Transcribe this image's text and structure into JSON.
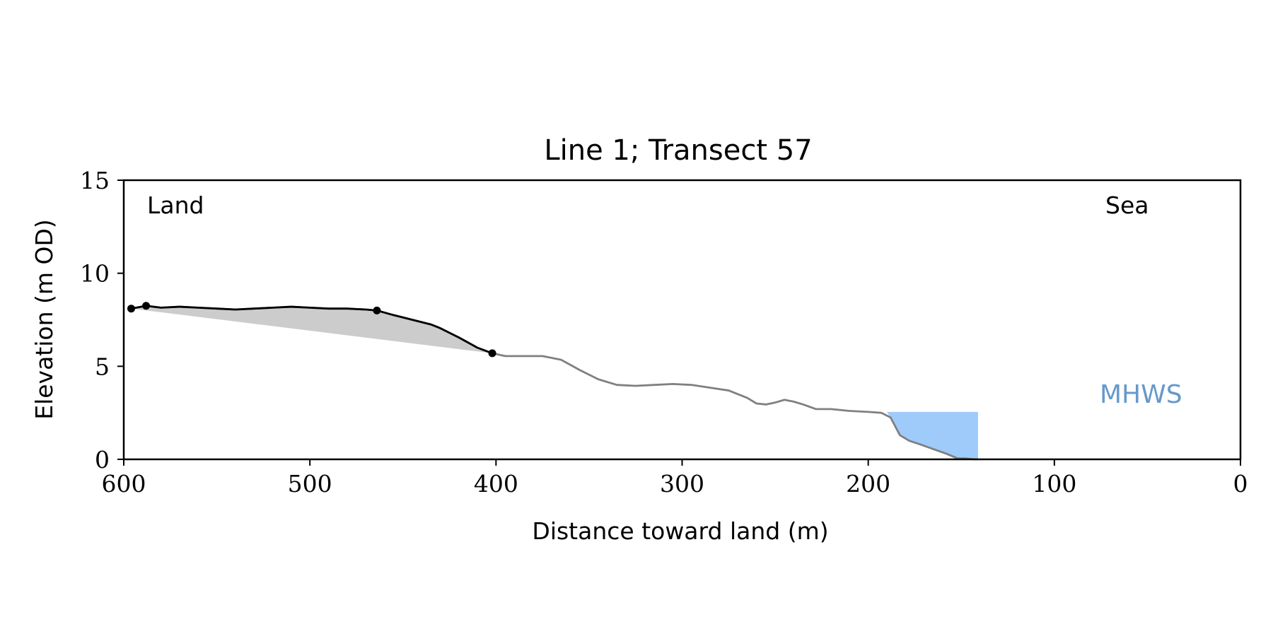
{
  "chart_data": {
    "type": "line",
    "title": "Line 1; Transect 57",
    "xlabel": "Distance toward land (m)",
    "ylabel": "Elevation (m OD)",
    "xlim": [
      600,
      0
    ],
    "ylim": [
      0,
      15
    ],
    "xticks": [
      600,
      500,
      400,
      300,
      200,
      100,
      0
    ],
    "yticks": [
      0,
      5,
      10,
      15
    ],
    "grid": false,
    "annotations": {
      "land": "Land",
      "sea": "Sea",
      "mhws": "MHWS"
    },
    "mhws_level": 2.55,
    "mhws_fill_x": [
      190,
      141
    ],
    "colors": {
      "profile": "#808080",
      "highlight": "#000000",
      "wedge": "#cccccc",
      "mhws_fill": "#9fcbfb",
      "mhws_text": "#6699cc"
    },
    "profile": {
      "x": [
        596,
        588,
        580,
        570,
        560,
        550,
        540,
        530,
        520,
        510,
        500,
        490,
        480,
        470,
        464,
        455,
        445,
        435,
        430,
        420,
        410,
        402,
        395,
        385,
        375,
        365,
        355,
        345,
        335,
        325,
        315,
        305,
        295,
        285,
        275,
        265,
        260,
        255,
        250,
        245,
        240,
        235,
        228,
        220,
        210,
        200,
        193,
        188,
        183,
        178,
        172,
        165,
        158,
        152,
        148,
        143,
        141
      ],
      "y": [
        8.1,
        8.25,
        8.15,
        8.2,
        8.15,
        8.1,
        8.05,
        8.1,
        8.15,
        8.2,
        8.15,
        8.1,
        8.1,
        8.05,
        8.0,
        7.75,
        7.5,
        7.25,
        7.05,
        6.55,
        6.0,
        5.7,
        5.55,
        5.55,
        5.55,
        5.35,
        4.8,
        4.3,
        4.0,
        3.95,
        4.0,
        4.05,
        4.0,
        3.85,
        3.7,
        3.3,
        3.0,
        2.95,
        3.05,
        3.2,
        3.1,
        2.95,
        2.7,
        2.7,
        2.6,
        2.55,
        2.5,
        2.25,
        1.3,
        1.0,
        0.8,
        0.55,
        0.3,
        0.05,
        0.05,
        0.0,
        0.0
      ]
    },
    "highlight_segment": {
      "x_from": 596,
      "x_to": 402
    },
    "markers": {
      "x": [
        596,
        588,
        464,
        402
      ],
      "y": [
        8.1,
        8.25,
        8.0,
        5.7
      ]
    }
  }
}
